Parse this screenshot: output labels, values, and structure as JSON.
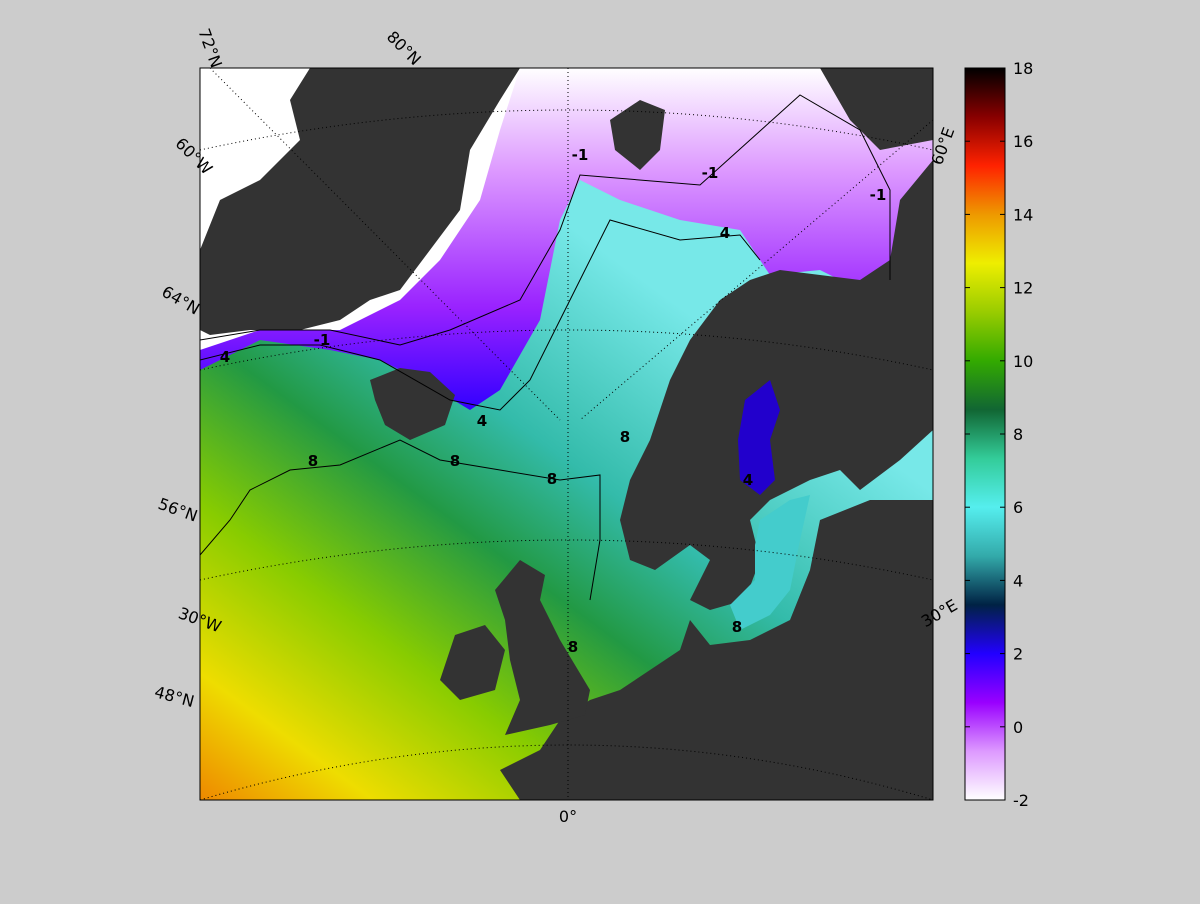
{
  "map": {
    "graticule_labels": [
      "72°N",
      "80°N",
      "60°W",
      "64°N",
      "56°N",
      "30°W",
      "48°N",
      "0°",
      "60°E",
      "30°E"
    ],
    "contour_labels": [
      "-1",
      "-1",
      "-1",
      "-1",
      "4",
      "4",
      "4",
      "4",
      "8",
      "8",
      "8",
      "8",
      "8",
      "8"
    ]
  },
  "colorbar": {
    "lim": [
      -2,
      18
    ],
    "ticks": [
      -2,
      0,
      2,
      4,
      6,
      8,
      10,
      12,
      14,
      16,
      18
    ],
    "colors": [
      "#ffffff",
      "#dd99ff",
      "#9900ff",
      "#2200ff",
      "#002244",
      "#33aaaa",
      "#55eeee",
      "#33cc99",
      "#116633",
      "#33aa00",
      "#99cc00",
      "#eeee00",
      "#ee9900",
      "#ff2200",
      "#880000",
      "#000000"
    ]
  }
}
